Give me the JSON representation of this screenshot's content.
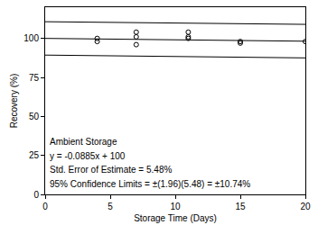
{
  "chart_data": {
    "type": "scatter",
    "x_label": "Storage Time (Days)",
    "y_label": "Recovery (%)",
    "xlim": [
      0,
      20
    ],
    "xticks": [
      0,
      5,
      10,
      15,
      20
    ],
    "ylim": [
      0,
      120
    ],
    "yticks": [
      0,
      25,
      50,
      75,
      100
    ],
    "grid": false,
    "annotations": [
      "Ambient Storage",
      "y = -0.0885x + 100",
      "Std. Error of Estimate = 5.48%",
      "95% Confidence Limits = ±(1.96)(5.48) = ±10.74%"
    ],
    "series": [
      {
        "type": "scatter",
        "marker": "open circle",
        "color": "#000000",
        "x": [
          4,
          4,
          7,
          7,
          7,
          11,
          11,
          11,
          15,
          15,
          20
        ],
        "values": [
          98,
          100,
          96,
          101,
          104,
          100,
          101,
          104,
          97,
          98,
          98
        ]
      },
      {
        "type": "line",
        "line_style": "solid",
        "color": "#000000",
        "x": [
          0,
          20
        ],
        "values": [
          100,
          98.2
        ]
      },
      {
        "type": "line",
        "line_style": "solid",
        "color": "#000000",
        "x": [
          0,
          20
        ],
        "values": [
          110.7,
          109.0
        ]
      },
      {
        "type": "line",
        "line_style": "solid",
        "color": "#000000",
        "x": [
          0,
          20
        ],
        "values": [
          89.3,
          87.5
        ]
      }
    ]
  }
}
